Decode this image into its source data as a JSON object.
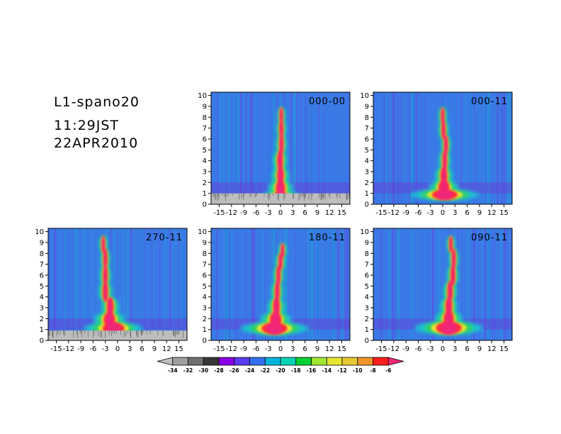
{
  "header": {
    "name": "L1-spano20",
    "time": "11:29JST",
    "date": "22APR2010"
  },
  "chart_data": [
    {
      "type": "heatmap",
      "panel": "000-00",
      "x_ticks": [
        "-15",
        "-12",
        "-9",
        "-6",
        "-3",
        "0",
        "3",
        "6",
        "9",
        "12",
        "15"
      ],
      "y_ticks": [
        "0",
        "1",
        "2",
        "3",
        "4",
        "5",
        "6",
        "7",
        "8",
        "9",
        "10"
      ],
      "xlim": [
        -17,
        17
      ],
      "ylim": [
        0,
        10.3
      ],
      "plume": [
        [
          0.5,
          0.0,
          2.0
        ],
        [
          1.5,
          0.0,
          1.3
        ],
        [
          2.5,
          0.0,
          0.9
        ],
        [
          4.0,
          -0.1,
          0.75
        ],
        [
          5.5,
          0.2,
          0.55
        ],
        [
          7.0,
          0.2,
          0.5
        ],
        [
          8.3,
          0.2,
          0.4
        ]
      ],
      "ground_level": 1.0
    },
    {
      "type": "heatmap",
      "panel": "000-11",
      "x_ticks": [
        "-15",
        "-12",
        "-9",
        "-6",
        "-3",
        "0",
        "3",
        "6",
        "9",
        "12",
        "15"
      ],
      "y_ticks": [
        "0",
        "1",
        "2",
        "3",
        "4",
        "5",
        "6",
        "7",
        "8",
        "9",
        "10"
      ],
      "xlim": [
        -17,
        17
      ],
      "ylim": [
        0,
        10.3
      ],
      "plume": [
        [
          0.8,
          0.5,
          3.5
        ],
        [
          1.5,
          0.3,
          1.5
        ],
        [
          2.5,
          0.3,
          0.9
        ],
        [
          4.0,
          0.5,
          0.6
        ],
        [
          5.5,
          0.8,
          0.5
        ],
        [
          6.8,
          0.2,
          0.5
        ],
        [
          8.3,
          0.0,
          0.4
        ]
      ],
      "ground_level": 0
    },
    {
      "type": "heatmap",
      "panel": "270-11",
      "x_ticks": [
        "-15",
        "-12",
        "-9",
        "-6",
        "-3",
        "0",
        "3",
        "6",
        "9",
        "12",
        "15"
      ],
      "y_ticks": [
        "0",
        "1",
        "2",
        "3",
        "4",
        "5",
        "6",
        "7",
        "8",
        "9",
        "10"
      ],
      "xlim": [
        -17,
        17
      ],
      "ylim": [
        0,
        10.3
      ],
      "plume": [
        [
          1.1,
          -1.0,
          3.0
        ],
        [
          1.8,
          -2.0,
          1.6
        ],
        [
          3.0,
          -1.8,
          0.9
        ],
        [
          4.5,
          -3.0,
          0.7
        ],
        [
          6.0,
          -3.0,
          0.6
        ],
        [
          7.5,
          -3.0,
          0.5
        ],
        [
          9.0,
          -3.5,
          0.4
        ]
      ],
      "ground_level": 0.9
    },
    {
      "type": "heatmap",
      "panel": "180-11",
      "x_ticks": [
        "-15",
        "-12",
        "-9",
        "-6",
        "-3",
        "0",
        "3",
        "6",
        "9",
        "12",
        "15"
      ],
      "y_ticks": [
        "0",
        "1",
        "2",
        "3",
        "4",
        "5",
        "6",
        "7",
        "8",
        "9",
        "10"
      ],
      "xlim": [
        -17,
        17
      ],
      "ylim": [
        0,
        10.3
      ],
      "plume": [
        [
          1.1,
          -1.5,
          3.5
        ],
        [
          1.8,
          -1.2,
          1.6
        ],
        [
          3.0,
          -1.0,
          0.9
        ],
        [
          4.5,
          -0.8,
          0.6
        ],
        [
          6.0,
          -0.5,
          0.5
        ],
        [
          7.3,
          0.0,
          0.5
        ],
        [
          8.3,
          0.5,
          0.4
        ]
      ],
      "ground_level": 0
    },
    {
      "type": "heatmap",
      "panel": "090-11",
      "x_ticks": [
        "-15",
        "-12",
        "-9",
        "-6",
        "-3",
        "0",
        "3",
        "6",
        "9",
        "12",
        "15"
      ],
      "y_ticks": [
        "0",
        "1",
        "2",
        "3",
        "4",
        "5",
        "6",
        "7",
        "8",
        "9",
        "10"
      ],
      "xlim": [
        -17,
        17
      ],
      "ylim": [
        0,
        10.3
      ],
      "plume": [
        [
          1.1,
          1.5,
          3.5
        ],
        [
          2.0,
          1.5,
          1.4
        ],
        [
          3.0,
          1.5,
          0.9
        ],
        [
          4.5,
          1.8,
          0.7
        ],
        [
          6.0,
          2.5,
          0.6
        ],
        [
          7.5,
          2.7,
          0.5
        ],
        [
          9.0,
          2.0,
          0.4
        ]
      ],
      "ground_level": 0
    }
  ],
  "colorbar": {
    "labels": [
      "-34",
      "-32",
      "-30",
      "-28",
      "-26",
      "-24",
      "-22",
      "-20",
      "-18",
      "-16",
      "-14",
      "-12",
      "-10",
      "-8",
      "-6"
    ],
    "colors": [
      "#c0c0c0",
      "#a0a0a0",
      "#707070",
      "#383838",
      "#8a00e6",
      "#5a3cf0",
      "#3470f0",
      "#00b4dc",
      "#00d2b4",
      "#00d232",
      "#a0e632",
      "#e6e632",
      "#e6c832",
      "#f09628",
      "#ff1e1e",
      "#f0287a"
    ]
  }
}
